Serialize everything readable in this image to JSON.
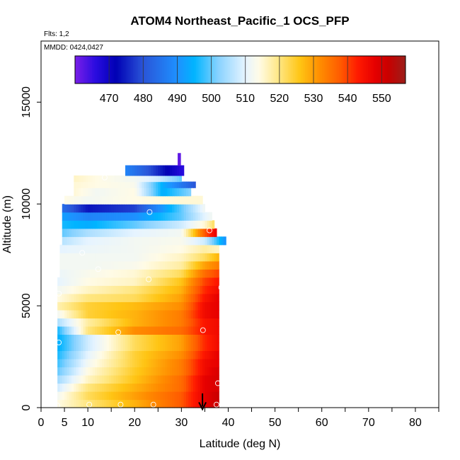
{
  "chart_data": {
    "type": "heatmap",
    "title": "ATOM4 Northeast_Pacific_1 OCS_PFP",
    "flights_label": "Flts: 1,2",
    "mmdd_label": "MMDD: 0424,0427",
    "xlabel": "Latitude (deg N)",
    "ylabel": "Altitude (m)",
    "xlim": [
      0,
      85
    ],
    "ylim": [
      0,
      18000
    ],
    "x_ticks": [
      0,
      5,
      10,
      20,
      30,
      40,
      50,
      60,
      70,
      80
    ],
    "x_minor_ticks": [
      15,
      25,
      35,
      45,
      55,
      65,
      75,
      85
    ],
    "y_ticks": [
      0,
      5000,
      10000,
      15000
    ],
    "colorbar": {
      "min": 460,
      "max": 557,
      "tick_values": [
        470,
        480,
        490,
        500,
        510,
        520,
        530,
        540,
        550
      ],
      "tick_labels": [
        "470",
        "480",
        "490",
        "500",
        "510",
        "520",
        "530",
        "540",
        "550"
      ],
      "stops": [
        {
          "v": 460,
          "c": "#7a1fe8"
        },
        {
          "v": 466,
          "c": "#2a0ce0"
        },
        {
          "v": 472,
          "c": "#0000b4"
        },
        {
          "v": 480,
          "c": "#2a55d8"
        },
        {
          "v": 490,
          "c": "#1e90ff"
        },
        {
          "v": 495,
          "c": "#00b4ff"
        },
        {
          "v": 502,
          "c": "#88d2ff"
        },
        {
          "v": 510,
          "c": "#e6f4ff"
        },
        {
          "v": 514,
          "c": "#fffbe6"
        },
        {
          "v": 520,
          "c": "#ffe680"
        },
        {
          "v": 526,
          "c": "#ffc514"
        },
        {
          "v": 532,
          "c": "#ff8c00"
        },
        {
          "v": 538,
          "c": "#ff5a00"
        },
        {
          "v": 543,
          "c": "#ff1a00"
        },
        {
          "v": 548,
          "c": "#e60000"
        },
        {
          "v": 552,
          "c": "#c80000"
        },
        {
          "v": 557,
          "c": "#9b1f1a"
        }
      ]
    },
    "rows": [
      {
        "y0": 0,
        "y1": 400,
        "x0": 3.5,
        "x1": 38,
        "lats": [
          3.5,
          10,
          20,
          30,
          35,
          38
        ],
        "vals": [
          514,
          520,
          528,
          538,
          548,
          552
        ]
      },
      {
        "y0": 400,
        "y1": 800,
        "x0": 3.5,
        "x1": 38,
        "lats": [
          3.5,
          10,
          20,
          30,
          35,
          38
        ],
        "vals": [
          512,
          522,
          530,
          538,
          548,
          552
        ]
      },
      {
        "y0": 800,
        "y1": 1200,
        "x0": 3.5,
        "x1": 38,
        "lats": [
          3.5,
          10,
          20,
          30,
          35,
          38
        ],
        "vals": [
          508,
          520,
          528,
          536,
          548,
          550
        ]
      },
      {
        "y0": 1200,
        "y1": 1600,
        "x0": 3.5,
        "x1": 38,
        "lats": [
          3.5,
          10,
          20,
          30,
          35,
          38
        ],
        "vals": [
          504,
          516,
          526,
          536,
          548,
          550
        ]
      },
      {
        "y0": 1600,
        "y1": 2000,
        "x0": 3.5,
        "x1": 38,
        "lats": [
          3.5,
          10,
          20,
          30,
          35,
          38
        ],
        "vals": [
          500,
          514,
          525,
          534,
          546,
          550
        ]
      },
      {
        "y0": 2000,
        "y1": 2400,
        "x0": 3.5,
        "x1": 38,
        "lats": [
          3.5,
          10,
          20,
          30,
          35,
          38
        ],
        "vals": [
          498,
          512,
          524,
          534,
          546,
          548
        ]
      },
      {
        "y0": 2400,
        "y1": 2800,
        "x0": 3.5,
        "x1": 38,
        "lats": [
          3.5,
          10,
          20,
          30,
          35,
          38
        ],
        "vals": [
          496,
          510,
          524,
          532,
          544,
          548
        ]
      },
      {
        "y0": 2800,
        "y1": 3200,
        "x0": 3.5,
        "x1": 38,
        "lats": [
          3.5,
          10,
          20,
          30,
          35,
          38
        ],
        "vals": [
          494,
          508,
          522,
          530,
          542,
          546
        ]
      },
      {
        "y0": 3200,
        "y1": 3600,
        "x0": 3.5,
        "x1": 38,
        "lats": [
          3.5,
          10,
          20,
          30,
          35,
          38
        ],
        "vals": [
          494,
          508,
          522,
          530,
          542,
          546
        ]
      },
      {
        "y0": 3600,
        "y1": 4000,
        "x0": 3.5,
        "x1": 38,
        "lats": [
          3.5,
          10,
          20,
          30,
          35,
          38
        ],
        "vals": [
          496,
          520,
          532,
          536,
          544,
          546
        ]
      },
      {
        "y0": 4000,
        "y1": 4400,
        "x0": 3.5,
        "x1": 38,
        "lats": [
          3.5,
          10,
          20,
          30,
          35,
          38
        ],
        "vals": [
          505,
          518,
          528,
          534,
          544,
          546
        ]
      },
      {
        "y0": 4400,
        "y1": 4800,
        "x0": 3.5,
        "x1": 38,
        "lats": [
          3.5,
          10,
          20,
          30,
          35,
          38
        ],
        "vals": [
          512,
          524,
          528,
          534,
          546,
          548
        ]
      },
      {
        "y0": 4800,
        "y1": 5200,
        "x0": 3.5,
        "x1": 38,
        "lats": [
          3.5,
          10,
          20,
          30,
          35,
          38
        ],
        "vals": [
          517,
          524,
          527,
          532,
          546,
          548
        ]
      },
      {
        "y0": 5200,
        "y1": 5600,
        "x0": 3.5,
        "x1": 38,
        "lats": [
          3.5,
          10,
          20,
          30,
          35,
          38
        ],
        "vals": [
          514,
          520,
          522,
          530,
          544,
          548
        ]
      },
      {
        "y0": 5600,
        "y1": 6000,
        "x0": 3.5,
        "x1": 38,
        "lats": [
          3.5,
          10,
          20,
          30,
          35,
          38
        ],
        "vals": [
          512,
          516,
          520,
          528,
          542,
          546
        ]
      },
      {
        "y0": 6000,
        "y1": 6400,
        "x0": 3.5,
        "x1": 38,
        "lats": [
          3.5,
          10,
          20,
          30,
          35,
          38
        ],
        "vals": [
          510,
          514,
          516,
          526,
          540,
          544
        ]
      },
      {
        "y0": 6400,
        "y1": 6800,
        "x0": 4,
        "x1": 38,
        "lats": [
          4,
          10,
          20,
          30,
          35,
          38
        ],
        "vals": [
          511,
          513,
          515,
          522,
          536,
          540
        ]
      },
      {
        "y0": 6800,
        "y1": 7200,
        "x0": 4,
        "x1": 38,
        "lats": [
          4,
          10,
          20,
          30,
          35,
          38
        ],
        "vals": [
          512,
          512,
          513,
          518,
          530,
          534
        ]
      },
      {
        "y0": 7200,
        "y1": 7600,
        "x0": 4,
        "x1": 38,
        "lats": [
          4,
          10,
          20,
          30,
          35,
          38
        ],
        "vals": [
          512,
          512,
          512,
          516,
          522,
          528
        ]
      },
      {
        "y0": 7600,
        "y1": 8000,
        "x0": 4,
        "x1": 38,
        "lats": [
          4,
          10,
          20,
          30,
          35,
          38
        ],
        "vals": [
          510,
          511,
          512,
          514,
          518,
          516
        ]
      },
      {
        "y0": 8000,
        "y1": 8400,
        "x0": 4.5,
        "x1": 39.5,
        "lats": [
          4.5,
          10,
          20,
          30,
          35,
          39.5
        ],
        "vals": [
          506,
          510,
          512,
          513,
          508,
          490
        ]
      },
      {
        "y0": 8400,
        "y1": 8800,
        "x0": 4.5,
        "x1": 37.5,
        "lats": [
          4.5,
          10,
          20,
          30,
          35,
          37.5
        ],
        "vals": [
          500,
          505,
          510,
          512,
          538,
          548
        ]
      },
      {
        "y0": 8800,
        "y1": 9200,
        "x0": 4.5,
        "x1": 37,
        "lats": [
          4.5,
          10,
          20,
          30,
          35,
          37
        ],
        "vals": [
          496,
          494,
          500,
          508,
          515,
          522
        ]
      },
      {
        "y0": 9200,
        "y1": 9600,
        "x0": 4.5,
        "x1": 36.5,
        "lats": [
          4.5,
          10,
          20,
          30,
          35,
          36.5
        ],
        "vals": [
          492,
          488,
          490,
          500,
          510,
          512
        ]
      },
      {
        "y0": 9600,
        "y1": 10000,
        "x0": 4.5,
        "x1": 35,
        "lats": [
          4.5,
          10,
          20,
          30,
          35
        ],
        "vals": [
          484,
          474,
          478,
          500,
          512
        ]
      },
      {
        "y0": 10000,
        "y1": 10400,
        "x0": 5,
        "x1": 34.5,
        "lats": [
          5,
          10,
          20,
          30,
          34.5
        ],
        "vals": [
          514,
          512,
          514,
          515,
          515
        ]
      },
      {
        "y0": 10400,
        "y1": 10800,
        "x0": 7,
        "x1": 32,
        "lats": [
          7,
          12,
          20,
          26,
          32
        ],
        "vals": [
          515,
          512,
          514,
          494,
          502
        ]
      },
      {
        "y0": 10800,
        "y1": 11100,
        "x0": 7,
        "x1": 33,
        "lats": [
          7,
          12,
          20,
          26,
          33
        ],
        "vals": [
          515,
          514,
          513,
          494,
          480
        ]
      },
      {
        "y0": 11100,
        "y1": 11400,
        "x0": 7,
        "x1": 30,
        "lats": [
          7,
          12,
          20,
          25,
          30
        ],
        "vals": [
          516,
          514,
          512,
          508,
          500
        ]
      },
      {
        "y0": 11400,
        "y1": 11900,
        "x0": 18,
        "x1": 30.5,
        "lats": [
          18,
          23,
          28,
          30.5
        ],
        "vals": [
          488,
          480,
          470,
          466
        ]
      },
      {
        "y0": 11900,
        "y1": 12500,
        "x0": 29.2,
        "x1": 29.8,
        "lats": [
          29.2,
          29.8
        ],
        "vals": [
          462,
          462
        ]
      }
    ],
    "observation_points": [
      {
        "lat": 3.5,
        "alt": 100
      },
      {
        "lat": 10.3,
        "alt": 150
      },
      {
        "lat": 17,
        "alt": 150
      },
      {
        "lat": 24,
        "alt": 150
      },
      {
        "lat": 37.5,
        "alt": 150
      },
      {
        "lat": 37.8,
        "alt": 1200
      },
      {
        "lat": 3.8,
        "alt": 3200
      },
      {
        "lat": 16.5,
        "alt": 3700
      },
      {
        "lat": 34.6,
        "alt": 3800
      },
      {
        "lat": 3.8,
        "alt": 5600
      },
      {
        "lat": 38.5,
        "alt": 5900
      },
      {
        "lat": 23,
        "alt": 6300
      },
      {
        "lat": 12.2,
        "alt": 6800
      },
      {
        "lat": 8.8,
        "alt": 7600
      },
      {
        "lat": 36,
        "alt": 8700
      },
      {
        "lat": 23.2,
        "alt": 9600
      },
      {
        "lat": 13.6,
        "alt": 11300
      }
    ],
    "arrow": {
      "lat": 34.5,
      "alt_from": 700,
      "alt_to": -50
    }
  }
}
